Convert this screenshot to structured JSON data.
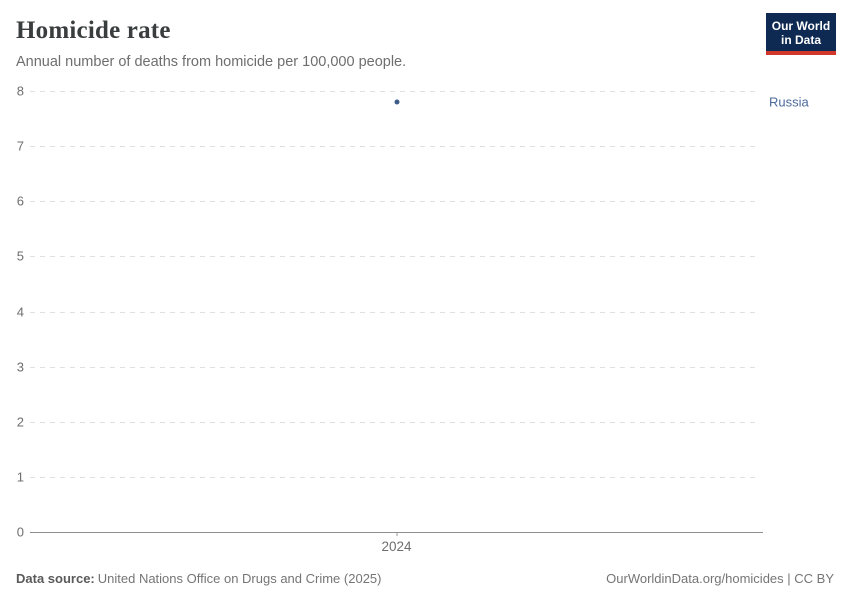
{
  "header": {
    "title": "Homicide rate",
    "subtitle": "Annual number of deaths from homicide per 100,000 people.",
    "logo": {
      "line1": "Our World",
      "line2": "in Data",
      "bg_color": "#0e2a52",
      "accent_color": "#d2372c"
    }
  },
  "chart_data": {
    "type": "scatter",
    "title": "Homicide rate",
    "subtitle": "Annual number of deaths from homicide per 100,000 people.",
    "xlabel": "",
    "ylabel": "",
    "ylim": [
      0,
      8
    ],
    "xlim": [
      2023,
      2025
    ],
    "y_ticks": [
      0,
      1,
      2,
      3,
      4,
      5,
      6,
      7,
      8
    ],
    "x_ticks": [
      2024
    ],
    "grid": "horizontal-dashed",
    "legend_position": "right-of-plot",
    "series": [
      {
        "name": "Russia",
        "color": "#3d5c8c",
        "label_color": "#4c6a9c",
        "points": [
          {
            "x": 2024,
            "y": 7.8
          }
        ]
      }
    ]
  },
  "footer": {
    "datasource_label": "Data source:",
    "datasource_value": "United Nations Office on Drugs and Crime (2025)",
    "attribution": "OurWorldinData.org/homicides | CC BY"
  },
  "colors": {
    "gridline": "#e0e0e2",
    "axis_line": "#8f8f8f",
    "tick_label": "#6e6e6e",
    "title": "#3a3d3e",
    "subtitle": "#6e6e6e",
    "footer_text": "#757575"
  }
}
